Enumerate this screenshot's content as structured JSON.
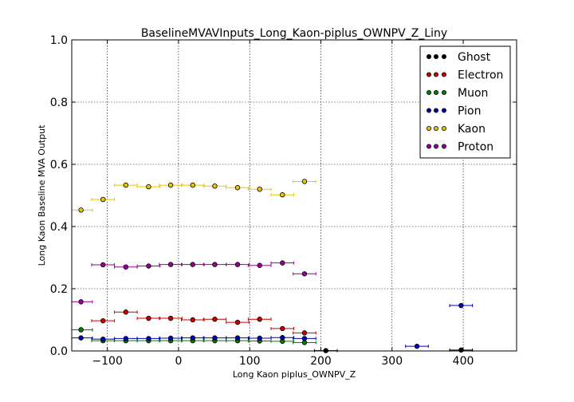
{
  "chart_data": {
    "type": "scatter",
    "title": "BaselineMVAVInputs_Long_Kaon-piplus_OWNPV_Z_Liny",
    "xlabel": "Long Kaon piplus_OWNPV_Z",
    "ylabel": "Long Kaon Baseline MVA Output",
    "xlim": [
      -150,
      475
    ],
    "ylim": [
      0.0,
      1.0
    ],
    "xticks": [
      -100,
      0,
      100,
      200,
      300,
      400
    ],
    "yticks": [
      0.0,
      0.2,
      0.4,
      0.6,
      0.8,
      1.0
    ],
    "xtick_labels": [
      "−100",
      "0",
      "100",
      "200",
      "300",
      "400"
    ],
    "ytick_labels": [
      "0.0",
      "0.2",
      "0.4",
      "0.6",
      "0.8",
      "1.0"
    ],
    "grid": true,
    "legend_position": "top-right",
    "x_bin_half_width": 16,
    "series": [
      {
        "name": "Ghost",
        "color": "#000000",
        "points": [
          [
            207,
            0.001
          ],
          [
            397,
            0.003
          ]
        ]
      },
      {
        "name": "Electron",
        "color": "#cc0000",
        "points": [
          [
            -137,
            0.068
          ],
          [
            -106,
            0.097
          ],
          [
            -74,
            0.125
          ],
          [
            -42,
            0.105
          ],
          [
            -11,
            0.105
          ],
          [
            20,
            0.1
          ],
          [
            51,
            0.102
          ],
          [
            83,
            0.092
          ],
          [
            114,
            0.102
          ],
          [
            146,
            0.072
          ],
          [
            177,
            0.058
          ]
        ]
      },
      {
        "name": "Muon",
        "color": "#008000",
        "points": [
          [
            -137,
            0.068
          ],
          [
            -106,
            0.033
          ],
          [
            -74,
            0.033
          ],
          [
            -42,
            0.033
          ],
          [
            -11,
            0.033
          ],
          [
            20,
            0.033
          ],
          [
            51,
            0.033
          ],
          [
            83,
            0.033
          ],
          [
            114,
            0.032
          ],
          [
            146,
            0.031
          ],
          [
            177,
            0.027
          ]
        ]
      },
      {
        "name": "Pion",
        "color": "#0000bb",
        "points": [
          [
            -137,
            0.042
          ],
          [
            -106,
            0.038
          ],
          [
            -74,
            0.04
          ],
          [
            -42,
            0.04
          ],
          [
            -11,
            0.041
          ],
          [
            20,
            0.042
          ],
          [
            51,
            0.042
          ],
          [
            83,
            0.042
          ],
          [
            114,
            0.041
          ],
          [
            146,
            0.043
          ],
          [
            177,
            0.04
          ],
          [
            335,
            0.015
          ],
          [
            397,
            0.146
          ]
        ]
      },
      {
        "name": "Kaon",
        "color": "#e8c800",
        "points": [
          [
            -137,
            0.453
          ],
          [
            -106,
            0.487
          ],
          [
            -74,
            0.533
          ],
          [
            -42,
            0.528
          ],
          [
            -11,
            0.533
          ],
          [
            20,
            0.533
          ],
          [
            51,
            0.53
          ],
          [
            83,
            0.525
          ],
          [
            114,
            0.52
          ],
          [
            146,
            0.502
          ],
          [
            177,
            0.545
          ]
        ]
      },
      {
        "name": "Proton",
        "color": "#990099",
        "points": [
          [
            -137,
            0.158
          ],
          [
            -106,
            0.277
          ],
          [
            -74,
            0.27
          ],
          [
            -42,
            0.273
          ],
          [
            -11,
            0.278
          ],
          [
            20,
            0.278
          ],
          [
            51,
            0.278
          ],
          [
            83,
            0.278
          ],
          [
            114,
            0.275
          ],
          [
            146,
            0.283
          ],
          [
            177,
            0.248
          ]
        ]
      }
    ]
  }
}
